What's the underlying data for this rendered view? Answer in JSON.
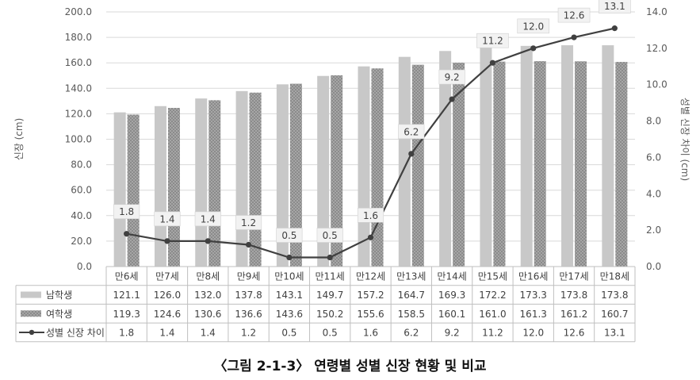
{
  "chart_data": {
    "type": "bar",
    "categories": [
      "만6세",
      "만7세",
      "만8세",
      "만9세",
      "만10세",
      "만11세",
      "만12세",
      "만13세",
      "만14세",
      "만15세",
      "만16세",
      "만17세",
      "만18세"
    ],
    "series": [
      {
        "name": "남학생",
        "kind": "bar",
        "axis": "left",
        "color": "#c8c8c8",
        "values": [
          121.1,
          126.0,
          132.0,
          137.8,
          143.1,
          149.7,
          157.2,
          164.7,
          169.3,
          172.2,
          173.3,
          173.8,
          173.8
        ],
        "labels": [
          "121.1",
          "126.0",
          "132.0",
          "137.8",
          "143.1",
          "149.7",
          "157.2",
          "164.7",
          "169.3",
          "172.2",
          "173.3",
          "173.8",
          "173.8"
        ]
      },
      {
        "name": "여학생",
        "kind": "bar-pattern",
        "axis": "left",
        "color": "#8c8c8c",
        "values": [
          119.3,
          124.6,
          130.6,
          136.6,
          143.6,
          150.2,
          155.6,
          158.5,
          160.1,
          161.0,
          161.3,
          161.2,
          160.7
        ],
        "labels": [
          "119.3",
          "124.6",
          "130.6",
          "136.6",
          "143.6",
          "150.2",
          "155.6",
          "158.5",
          "160.1",
          "161.0",
          "161.3",
          "161.2",
          "160.7"
        ]
      },
      {
        "name": "성별 신장 차이",
        "kind": "line",
        "axis": "right",
        "color": "#404040",
        "values": [
          1.8,
          1.4,
          1.4,
          1.2,
          0.5,
          0.5,
          1.6,
          6.2,
          9.2,
          11.2,
          12.0,
          12.6,
          13.1
        ],
        "labels": [
          "1.8",
          "1.4",
          "1.4",
          "1.2",
          "0.5",
          "0.5",
          "1.6",
          "6.2",
          "9.2",
          "11.2",
          "12.0",
          "12.6",
          "13.1"
        ]
      }
    ],
    "ylabel": "신장 (cm)",
    "y2label": "성별 신장 차이 (cm)",
    "ylim": [
      0,
      200
    ],
    "y2lim": [
      0,
      14
    ],
    "yticks": [
      "0.0",
      "20.0",
      "40.0",
      "60.0",
      "80.0",
      "100.0",
      "120.0",
      "140.0",
      "160.0",
      "180.0",
      "200.0"
    ],
    "y2ticks": [
      "0.0",
      "2.0",
      "4.0",
      "6.0",
      "8.0",
      "10.0",
      "12.0",
      "14.0"
    ],
    "gridlines": true,
    "legend": "data table",
    "caption": "〈그림 2-1-3〉 연령별 성별 신장 현황 및 비교"
  }
}
